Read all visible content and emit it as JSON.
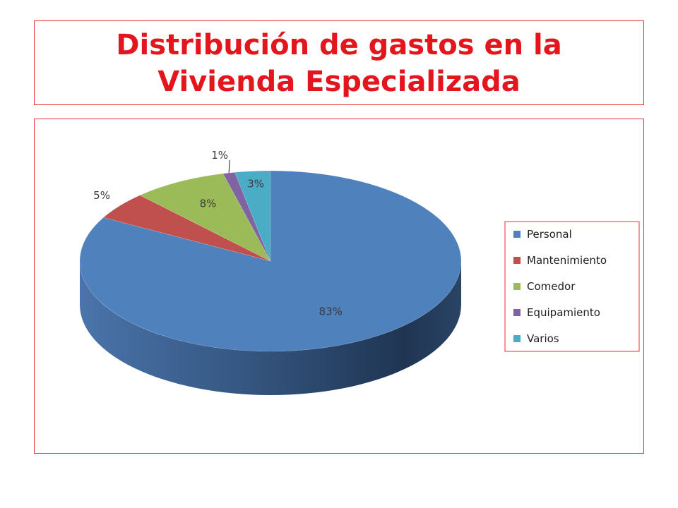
{
  "title": "Distribución de gastos en la Vivienda Especializada",
  "chart_data": {
    "type": "pie",
    "title": "Distribución de gastos en la Vivienda Especializada",
    "style": "3d",
    "legend": "right",
    "labels_format": "percent",
    "slices": [
      {
        "name": "Personal",
        "value": 83,
        "label": "83%",
        "color": "#4f81bd"
      },
      {
        "name": "Mantenimiento",
        "value": 5,
        "label": "5%",
        "color": "#c0504d"
      },
      {
        "name": "Comedor",
        "value": 8,
        "label": "8%",
        "color": "#9bbb59"
      },
      {
        "name": "Equipamiento",
        "value": 1,
        "label": "1%",
        "color": "#8064a2"
      },
      {
        "name": "Varios",
        "value": 3,
        "label": "3%",
        "color": "#4bacc6"
      }
    ]
  }
}
